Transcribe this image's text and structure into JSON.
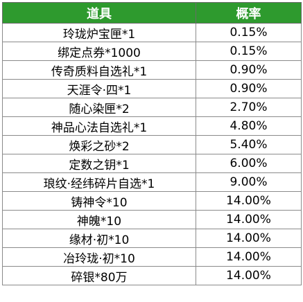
{
  "table": {
    "header_color": "#2e9a2e",
    "headers": [
      "道具",
      "概率"
    ],
    "rows": [
      {
        "item": "玲珑炉宝匣*1",
        "prob": "0.15%"
      },
      {
        "item": "绑定点券*1000",
        "prob": "0.15%"
      },
      {
        "item": "传奇质料自选礼*1",
        "prob": "0.90%"
      },
      {
        "item": "天涯令·四*1",
        "prob": "0.90%"
      },
      {
        "item": "随心染匣*2",
        "prob": "2.70%"
      },
      {
        "item": "神品心法自选礼*1",
        "prob": "4.80%"
      },
      {
        "item": "焕彩之砂*2",
        "prob": "5.40%"
      },
      {
        "item": "定数之钥*1",
        "prob": "6.00%"
      },
      {
        "item": "琅纹·经纬碎片自选*1",
        "prob": "9.00%"
      },
      {
        "item": "铸神令*10",
        "prob": "14.00%"
      },
      {
        "item": "神魄*10",
        "prob": "14.00%"
      },
      {
        "item": "缘材·初*10",
        "prob": "14.00%"
      },
      {
        "item": "冶玲珑·初*10",
        "prob": "14.00%"
      },
      {
        "item": "碎银*80万",
        "prob": "14.00%"
      }
    ]
  }
}
